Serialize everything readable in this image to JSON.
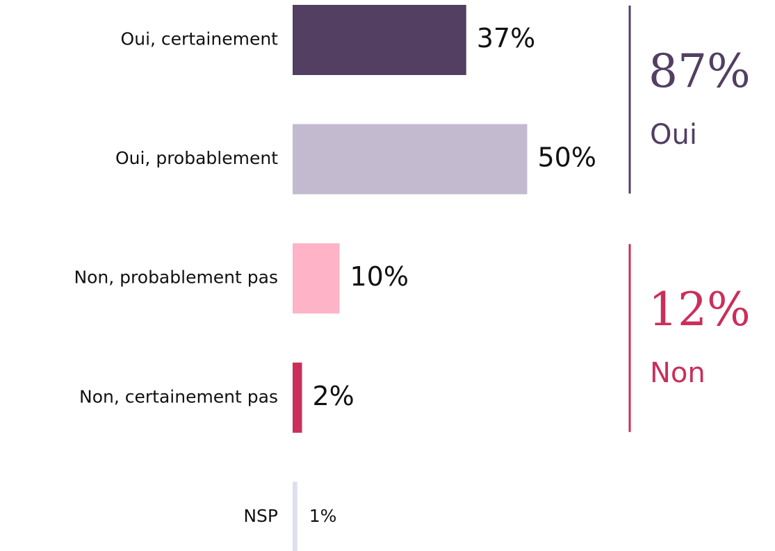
{
  "chart_data": {
    "type": "bar",
    "orientation": "horizontal",
    "categories": [
      "Oui, certainement",
      "Oui, probablement",
      "Non, probablement pas",
      "Non, certainement pas",
      "NSP"
    ],
    "values": [
      37,
      50,
      10,
      2,
      1
    ],
    "value_labels": [
      "37%",
      "50%",
      "10%",
      "2%",
      "1%"
    ],
    "colors": [
      "#523f62",
      "#c3bad0",
      "#feb3c6",
      "#cb2e5a",
      "#dde0ec"
    ],
    "annotations": [
      {
        "text": "87%",
        "label": "Oui",
        "color": "#523f62"
      },
      {
        "text": "12%",
        "label": "Non",
        "color": "#cb2e5a"
      }
    ]
  }
}
